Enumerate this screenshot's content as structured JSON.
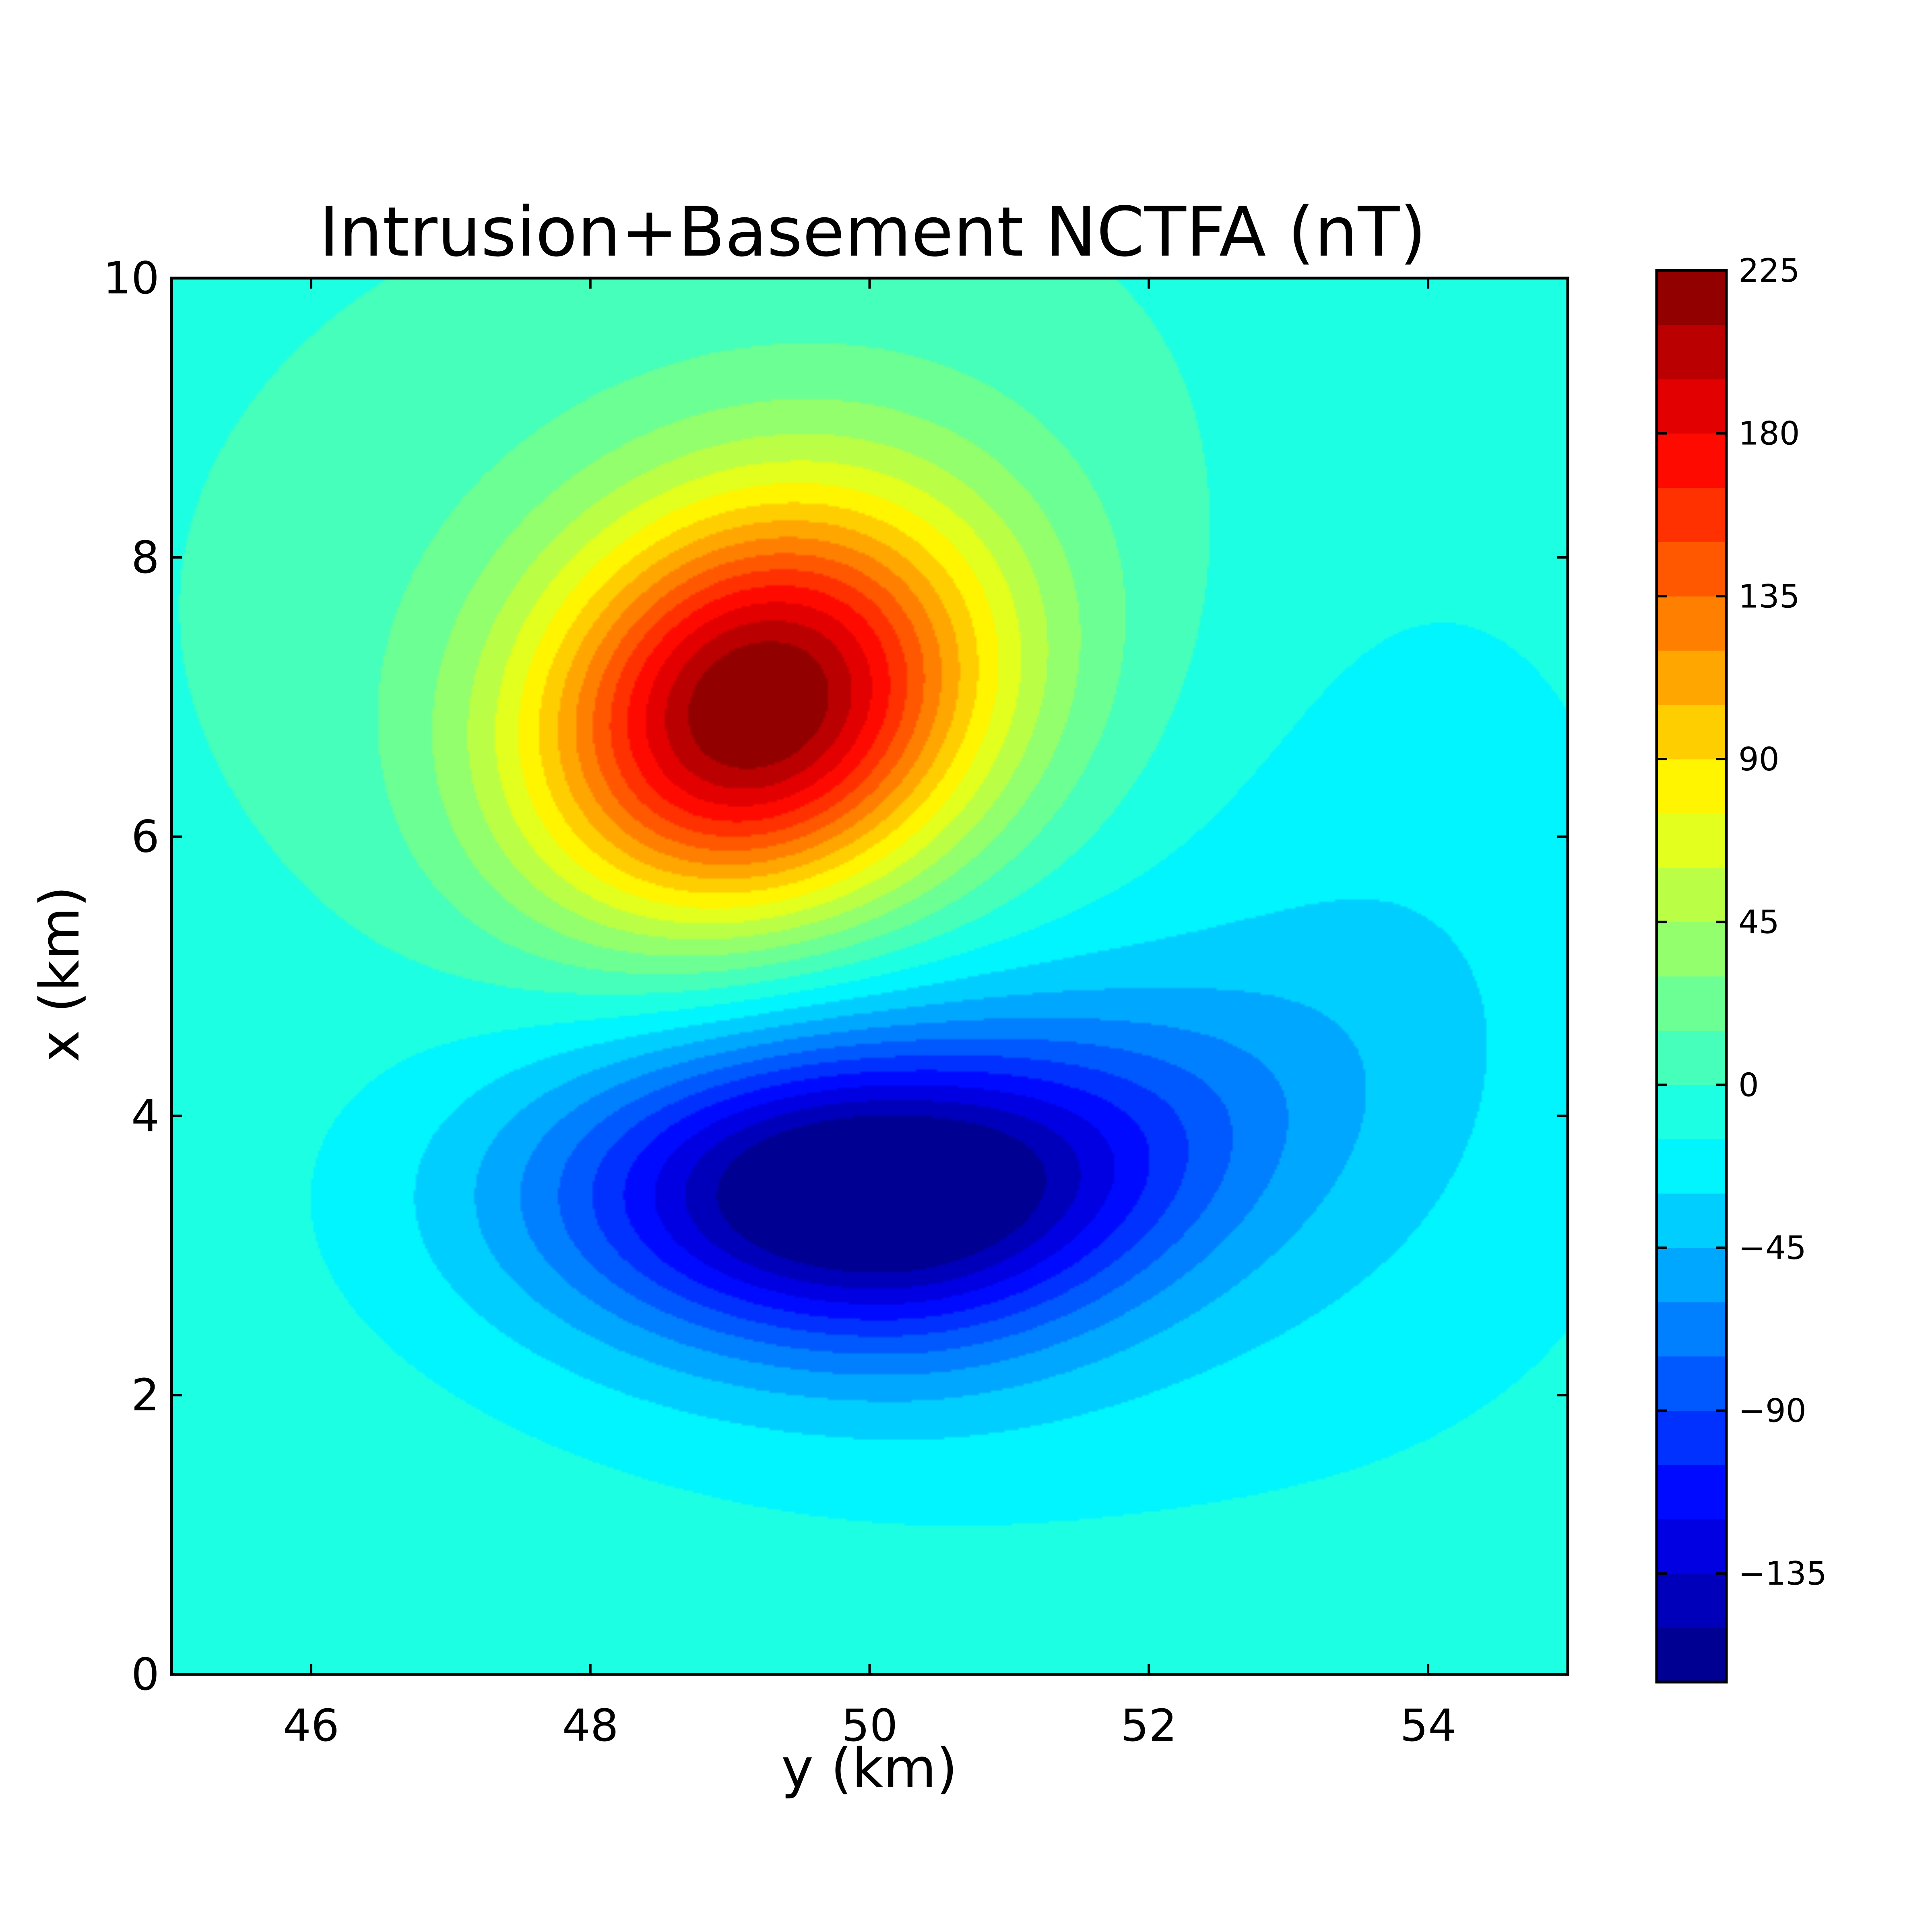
{
  "chart_data": {
    "type": "heatmap",
    "subtype": "filled-contour",
    "title": "Intrusion+Basement NCTFA (nT)",
    "xlabel": "y (km)",
    "ylabel": "x (km)",
    "xlim": [
      45,
      55
    ],
    "ylim": [
      0,
      10
    ],
    "xticks": [
      46,
      48,
      50,
      52,
      54
    ],
    "yticks": [
      0,
      2,
      4,
      6,
      8,
      10
    ],
    "xtick_labels": [
      "46",
      "48",
      "50",
      "52",
      "54"
    ],
    "ytick_labels": [
      "0",
      "2",
      "4",
      "6",
      "8",
      "10"
    ],
    "colorbar": {
      "range": [
        -165,
        225
      ],
      "level_step": 15,
      "tick_values": [
        225,
        180,
        135,
        90,
        45,
        0,
        -45,
        -90,
        -135
      ],
      "tick_labels": [
        "225",
        "180",
        "135",
        "90",
        "45",
        "0",
        "−45",
        "−90",
        "−135"
      ],
      "colormap": "jet"
    },
    "anomalies": [
      {
        "kind": "positive-peak",
        "y_km": 49.2,
        "x_km": 6.9,
        "value_nT": 218
      },
      {
        "kind": "negative-trough",
        "y_km": 50.0,
        "x_km": 3.45,
        "value_nT": -158
      }
    ],
    "background_value_nT": 0,
    "grid": false,
    "legend": "colorbar-right"
  }
}
